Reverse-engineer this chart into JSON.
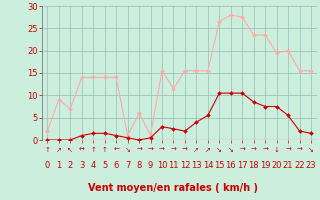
{
  "hours": [
    0,
    1,
    2,
    3,
    4,
    5,
    6,
    7,
    8,
    9,
    10,
    11,
    12,
    13,
    14,
    15,
    16,
    17,
    18,
    19,
    20,
    21,
    22,
    23
  ],
  "vent_moyen": [
    0,
    0,
    0,
    1,
    1.5,
    1.5,
    1,
    0.5,
    0,
    0.5,
    3,
    2.5,
    2,
    4,
    5.5,
    10.5,
    10.5,
    10.5,
    8.5,
    7.5,
    7.5,
    5.5,
    2,
    1.5
  ],
  "rafales": [
    2,
    9,
    7,
    14,
    14,
    14,
    14,
    1,
    6,
    1,
    15.5,
    11.5,
    15.5,
    15.5,
    15.5,
    26.5,
    28,
    27.5,
    23.5,
    23.5,
    19.5,
    20,
    15.5,
    15.5
  ],
  "wind_dirs": [
    "↑",
    "↗",
    "↖",
    "↔",
    "↑",
    "↑",
    "←",
    "↘",
    "→",
    "→",
    "→",
    "→",
    "→",
    "↗",
    "↗",
    "↘",
    "↘",
    "→",
    "→",
    "→",
    "↓",
    "→",
    "→",
    "↘"
  ],
  "moyen_color": "#cc0000",
  "rafales_color": "#ffaaaa",
  "bg_color": "#cceedd",
  "grid_color": "#99bbbb",
  "ylim": [
    0,
    30
  ],
  "yticks": [
    0,
    5,
    10,
    15,
    20,
    25,
    30
  ],
  "xlabel": "Vent moyen/en rafales ( km/h )",
  "markersize": 2.0,
  "linewidth": 0.8,
  "xlabel_fontsize": 7,
  "tick_fontsize": 6
}
